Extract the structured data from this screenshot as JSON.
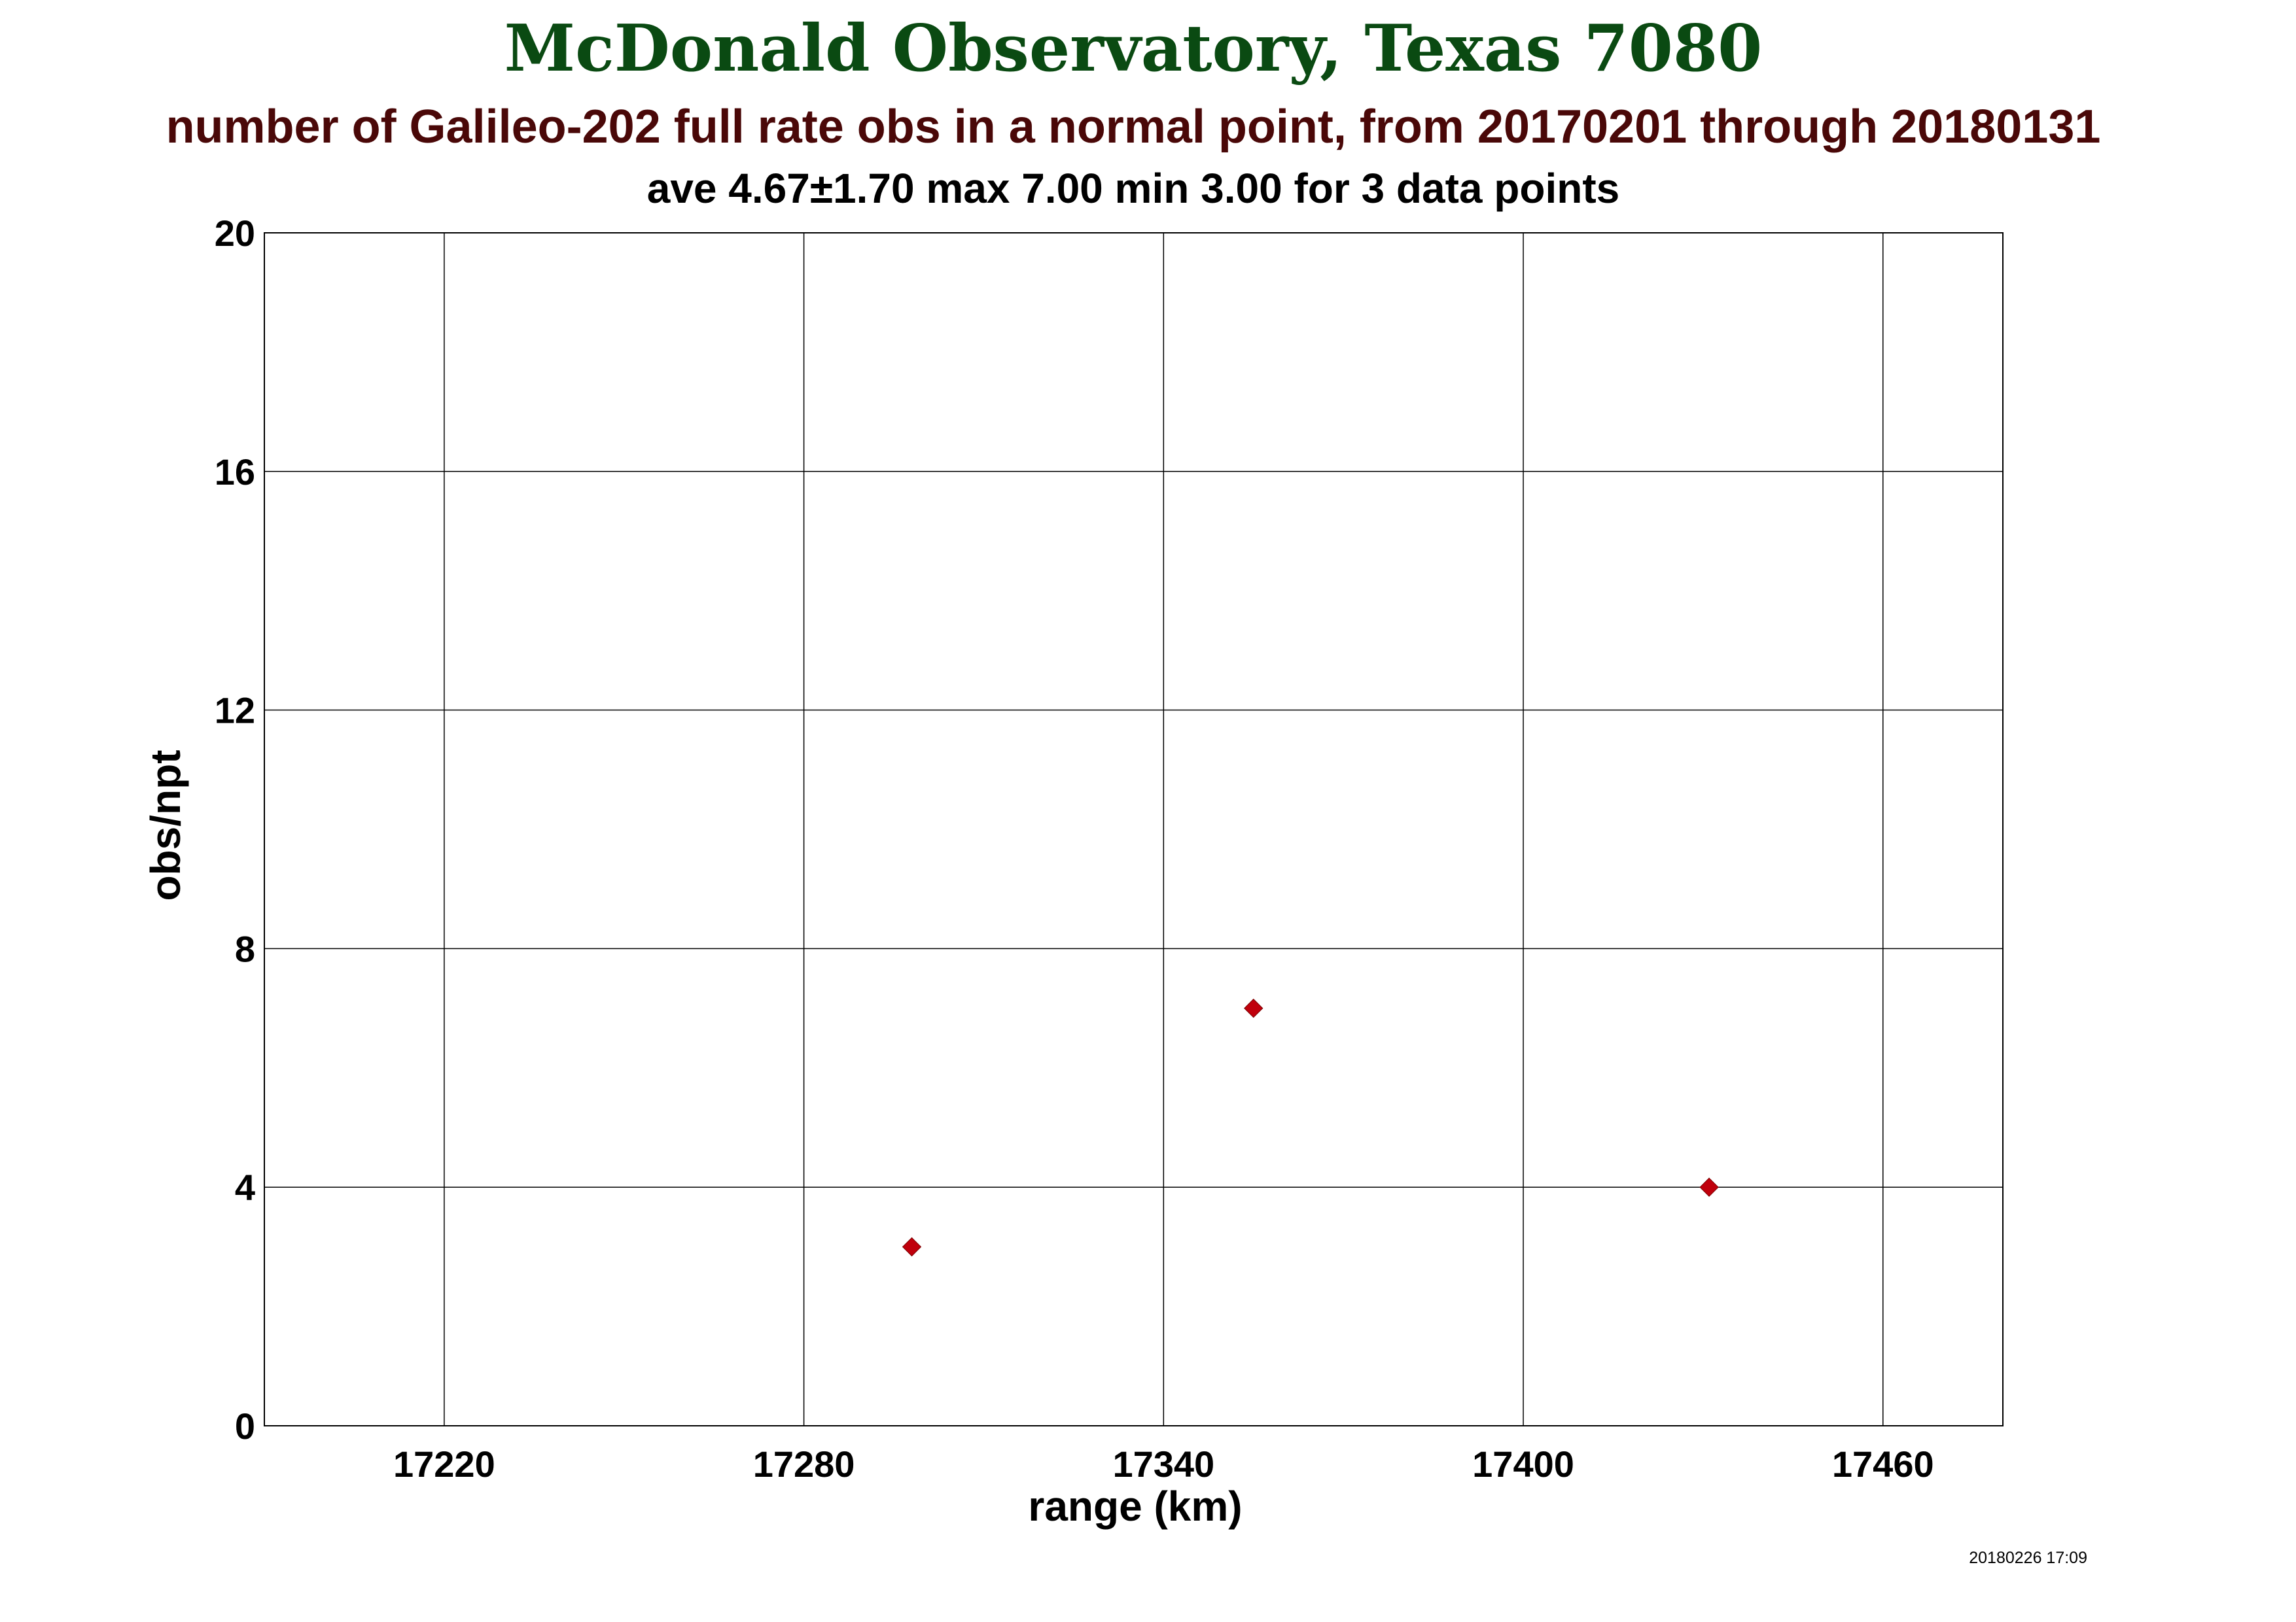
{
  "header": {
    "title": "McDonald Observatory, Texas 7080",
    "subtitle": "number of Galileo-202 full rate obs in a normal point, from 20170201 through 20180131",
    "stats": "ave  4.67±1.70  max  7.00  min  3.00 for 3 data points"
  },
  "footer": {
    "timestamp": "20180226 17:09"
  },
  "colors": {
    "title": "#0a4a12",
    "subtitle": "#4a0808",
    "marker": "#c0000c",
    "grid": "#000000"
  },
  "chart_data": {
    "type": "scatter",
    "xlabel": "range (km)",
    "ylabel": "obs/npt",
    "xlim": [
      17190,
      17480
    ],
    "ylim": [
      0,
      20
    ],
    "x_ticks": [
      17220,
      17280,
      17340,
      17400,
      17460
    ],
    "y_ticks": [
      0,
      4,
      8,
      12,
      16,
      20
    ],
    "grid": true,
    "marker": "diamond",
    "points": [
      {
        "x": 17298,
        "y": 3
      },
      {
        "x": 17355,
        "y": 7
      },
      {
        "x": 17431,
        "y": 4
      }
    ]
  }
}
